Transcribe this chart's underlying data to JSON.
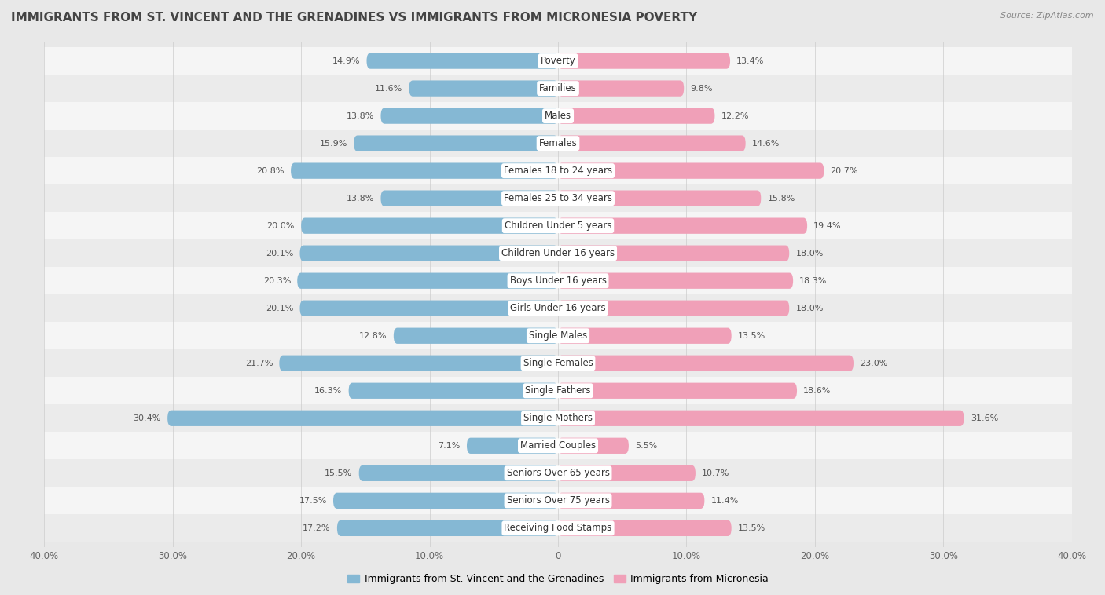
{
  "title": "IMMIGRANTS FROM ST. VINCENT AND THE GRENADINES VS IMMIGRANTS FROM MICRONESIA POVERTY",
  "source": "Source: ZipAtlas.com",
  "categories": [
    "Poverty",
    "Families",
    "Males",
    "Females",
    "Females 18 to 24 years",
    "Females 25 to 34 years",
    "Children Under 5 years",
    "Children Under 16 years",
    "Boys Under 16 years",
    "Girls Under 16 years",
    "Single Males",
    "Single Females",
    "Single Fathers",
    "Single Mothers",
    "Married Couples",
    "Seniors Over 65 years",
    "Seniors Over 75 years",
    "Receiving Food Stamps"
  ],
  "left_values": [
    14.9,
    11.6,
    13.8,
    15.9,
    20.8,
    13.8,
    20.0,
    20.1,
    20.3,
    20.1,
    12.8,
    21.7,
    16.3,
    30.4,
    7.1,
    15.5,
    17.5,
    17.2
  ],
  "right_values": [
    13.4,
    9.8,
    12.2,
    14.6,
    20.7,
    15.8,
    19.4,
    18.0,
    18.3,
    18.0,
    13.5,
    23.0,
    18.6,
    31.6,
    5.5,
    10.7,
    11.4,
    13.5
  ],
  "left_color": "#85b8d4",
  "right_color": "#f0a0b8",
  "left_label": "Immigrants from St. Vincent and the Grenadines",
  "right_label": "Immigrants from Micronesia",
  "xlim": 40.0,
  "background_color": "#e8e8e8",
  "row_bg_odd": "#f5f5f5",
  "row_bg_even": "#ebebeb",
  "title_fontsize": 11,
  "label_fontsize": 8.5,
  "value_fontsize": 8.0
}
